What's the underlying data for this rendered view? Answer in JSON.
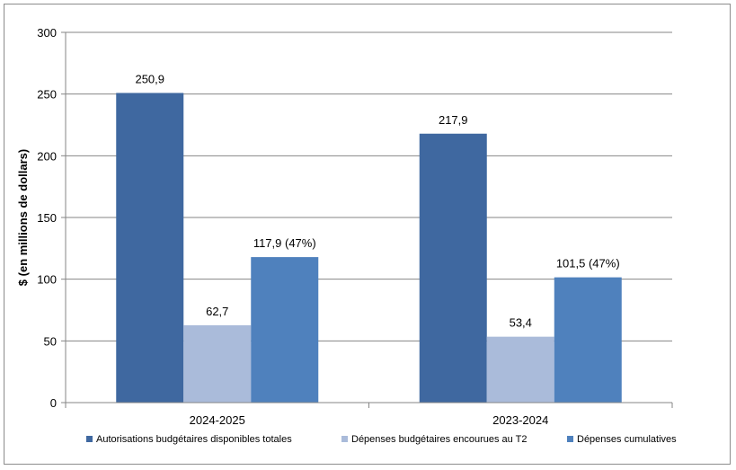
{
  "chart_data": {
    "type": "bar",
    "ylabel": "$ (en millions de dollars)",
    "xlabel": "",
    "ylim": [
      0,
      300
    ],
    "yticks": [
      0,
      50,
      100,
      150,
      200,
      250,
      300
    ],
    "grid": true,
    "legend_position": "bottom",
    "categories": [
      "2024-2025",
      "2023-2024"
    ],
    "series": [
      {
        "name": "Autorisations budgétaires disponibles totales",
        "color": "#3F68A0",
        "values": [
          250.9,
          217.9
        ],
        "labels": [
          "250,9",
          "217,9"
        ]
      },
      {
        "name": "Dépenses budgétaires encourues au T2",
        "color": "#AABBDA",
        "values": [
          62.7,
          53.4
        ],
        "labels": [
          "62,7",
          "53,4"
        ]
      },
      {
        "name": "Dépenses cumulatives",
        "color": "#4F81BD",
        "values": [
          117.9,
          101.5
        ],
        "labels": [
          "117,9 (47%)",
          "101,5 (47%)"
        ]
      }
    ]
  }
}
